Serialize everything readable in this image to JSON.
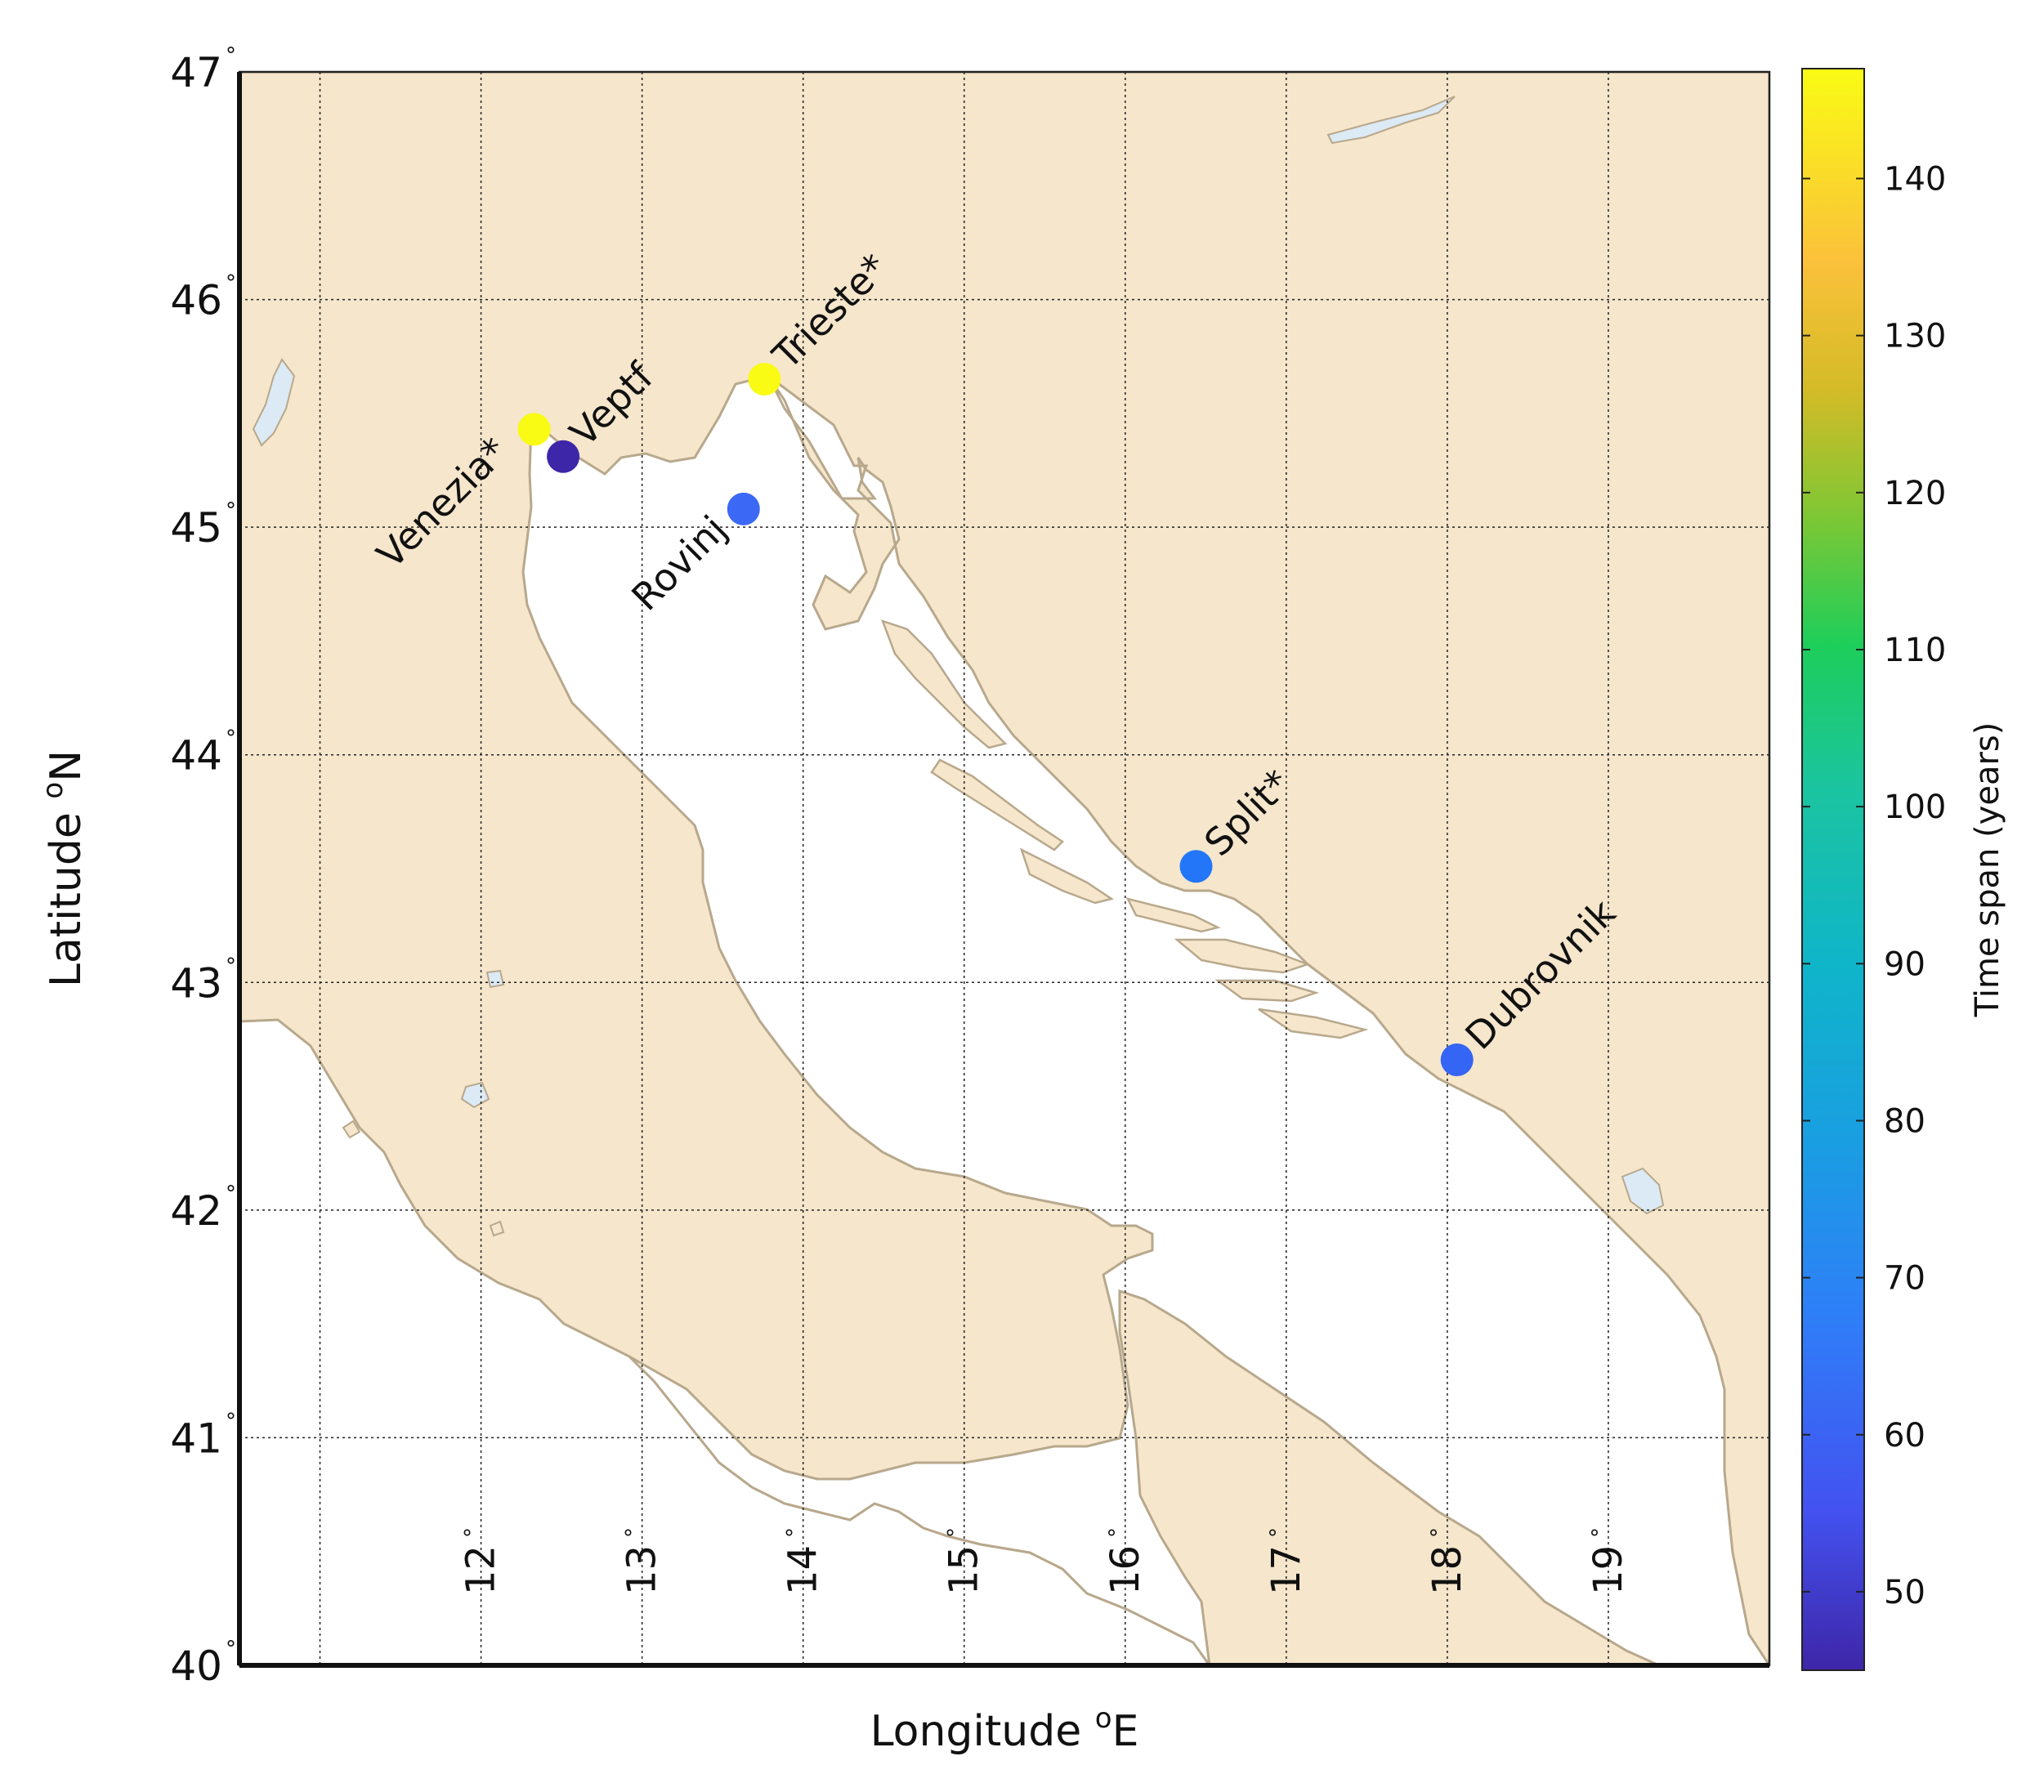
{
  "map": {
    "xlabel": "Longitude ",
    "xlabel_sup": "o",
    "xlabel_unit": "E",
    "ylabel": "Latitude ",
    "ylabel_sup": "o",
    "ylabel_unit": "N",
    "lon_range": [
      10.5,
      20.0
    ],
    "lat_range": [
      40.0,
      47.0
    ],
    "lon_ticks": [
      "12",
      "13",
      "14",
      "15",
      "16",
      "17",
      "18",
      "19"
    ],
    "lon_tick_values": [
      12,
      13,
      14,
      15,
      16,
      17,
      18,
      19
    ],
    "lat_ticks": [
      "40",
      "41",
      "42",
      "43",
      "44",
      "45",
      "46",
      "47"
    ],
    "lat_tick_values": [
      40,
      41,
      42,
      43,
      44,
      45,
      46,
      47
    ],
    "degree_symbol": "°",
    "grid": true,
    "colors": {
      "land": "#f5e6cc",
      "coast": "#b8a88c",
      "water": "#ffffff",
      "lake": "#dceaf5",
      "grid": "#222222"
    }
  },
  "colorbar": {
    "label": "Time span (years)",
    "range": [
      45,
      147
    ],
    "ticks": [
      "50",
      "60",
      "70",
      "80",
      "90",
      "100",
      "110",
      "120",
      "130",
      "140"
    ],
    "tick_values": [
      50,
      60,
      70,
      80,
      90,
      100,
      110,
      120,
      130,
      140
    ],
    "colormap": [
      "#3e26a8",
      "#4352f0",
      "#2f7ef8",
      "#1a9ee2",
      "#0fb5c9",
      "#1bc4a0",
      "#1dce5a",
      "#7ec734",
      "#d4bb27",
      "#fbc13a",
      "#f9fb14"
    ]
  },
  "chart_data": {
    "type": "scatter",
    "xlabel": "Longitude oE",
    "ylabel": "Latitude oN",
    "color_label": "Time span (years)",
    "points": [
      {
        "name": "Venezia*",
        "lon": 12.33,
        "lat": 45.43,
        "span": 147,
        "color": "#f9fb14"
      },
      {
        "name": "Veptf",
        "lon": 12.51,
        "lat": 45.31,
        "span": 47,
        "color": "#3e26a8"
      },
      {
        "name": "Trieste*",
        "lon": 13.76,
        "lat": 45.65,
        "span": 145,
        "color": "#f9fb14"
      },
      {
        "name": "Rovinj",
        "lon": 13.63,
        "lat": 45.08,
        "span": 62,
        "color": "#3b68f5"
      },
      {
        "name": "Split*",
        "lon": 16.44,
        "lat": 43.51,
        "span": 68,
        "color": "#2376f7"
      },
      {
        "name": "Dubrovnik",
        "lon": 18.06,
        "lat": 42.66,
        "span": 63,
        "color": "#3565f4"
      }
    ]
  }
}
